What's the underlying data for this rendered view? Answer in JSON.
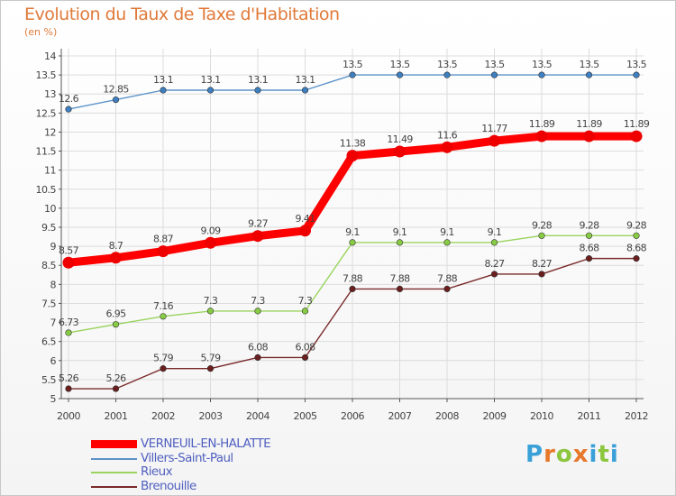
{
  "title": "Evolution du Taux de Taxe d'Habitation",
  "subtitle": "(en %)",
  "logo": {
    "text": "Proxiti",
    "colors": [
      "#3aa0d8",
      "#e8782a",
      "#8cc63f",
      "#e8782a",
      "#3aa0d8",
      "#8cc63f",
      "#3aa0d8"
    ]
  },
  "chart_data": {
    "type": "line",
    "x": [
      2000,
      2001,
      2002,
      2003,
      2004,
      2005,
      2006,
      2007,
      2008,
      2009,
      2010,
      2011,
      2012
    ],
    "xlabels": [
      "2000",
      "2001",
      "2002",
      "2003",
      "2004",
      "2005",
      "2006",
      "2007",
      "2008",
      "2009",
      "2010",
      "2011",
      "2012"
    ],
    "ylim": [
      5,
      14
    ],
    "yticks": [
      {
        "v": 5,
        "label": "5"
      },
      {
        "v": 5.5,
        "label": "5.5"
      },
      {
        "v": 6,
        "label": "6"
      },
      {
        "v": 6.5,
        "label": "6.5"
      },
      {
        "v": 7,
        "label": "7"
      },
      {
        "v": 7.5,
        "label": "7.5"
      },
      {
        "v": 8,
        "label": "8"
      },
      {
        "v": 8.5,
        "label": "8.5"
      },
      {
        "v": 9,
        "label": "9"
      },
      {
        "v": 9.5,
        "label": "9.5"
      },
      {
        "v": 10,
        "label": "10"
      },
      {
        "v": 10.5,
        "label": "10.5"
      },
      {
        "v": 11,
        "label": "11"
      },
      {
        "v": 11.5,
        "label": "11.5"
      },
      {
        "v": 12,
        "label": "12"
      },
      {
        "v": 12.5,
        "label": "12.5"
      },
      {
        "v": 13,
        "label": "13"
      },
      {
        "v": 13.5,
        "label": "13.5"
      },
      {
        "v": 14,
        "label": "14"
      }
    ],
    "grid": true,
    "legend_position": "bottom-left",
    "series": [
      {
        "name": "VERNEUIL-EN-HALATTE",
        "color": "#ff0000",
        "marker": "#ee0000",
        "width": "thick",
        "values": [
          8.57,
          8.7,
          8.87,
          9.09,
          9.27,
          9.41,
          11.38,
          11.49,
          11.6,
          11.77,
          11.89,
          11.89,
          11.89
        ],
        "labels": [
          "8.57",
          "8.7",
          "8.87",
          "9.09",
          "9.27",
          "9.41",
          "11.38",
          "11.49",
          "11.6",
          "11.77",
          "11.89",
          "11.89",
          "11.89"
        ]
      },
      {
        "name": "Villers-Saint-Paul",
        "color": "#5b93c8",
        "marker": "#3d7fc0",
        "width": "thin",
        "values": [
          12.6,
          12.85,
          13.1,
          13.1,
          13.1,
          13.1,
          13.5,
          13.5,
          13.5,
          13.5,
          13.5,
          13.5,
          13.5
        ],
        "labels": [
          "12.6",
          "12.85",
          "13.1",
          "13.1",
          "13.1",
          "13.1",
          "13.5",
          "13.5",
          "13.5",
          "13.5",
          "13.5",
          "13.5",
          "13.5"
        ]
      },
      {
        "name": "Rieux",
        "color": "#9ad45e",
        "marker": "#88cc44",
        "width": "thin",
        "values": [
          6.73,
          6.95,
          7.16,
          7.3,
          7.3,
          7.3,
          9.1,
          9.1,
          9.1,
          9.1,
          9.28,
          9.28,
          9.28
        ],
        "labels": [
          "6.73",
          "6.95",
          "7.16",
          "7.3",
          "7.3",
          "7.3",
          "9.1",
          "9.1",
          "9.1",
          "9.1",
          "9.28",
          "9.28",
          "9.28"
        ]
      },
      {
        "name": "Brenouille",
        "color": "#7a2a2a",
        "marker": "#6a1e1e",
        "width": "thin",
        "values": [
          5.26,
          5.26,
          5.79,
          5.79,
          6.08,
          6.08,
          7.88,
          7.88,
          7.88,
          8.27,
          8.27,
          8.68,
          8.68
        ],
        "labels": [
          "5.26",
          "5.26",
          "5.79",
          "5.79",
          "6.08",
          "6.08",
          "7.88",
          "7.88",
          "7.88",
          "8.27",
          "8.27",
          "8.68",
          "8.68"
        ]
      }
    ]
  }
}
